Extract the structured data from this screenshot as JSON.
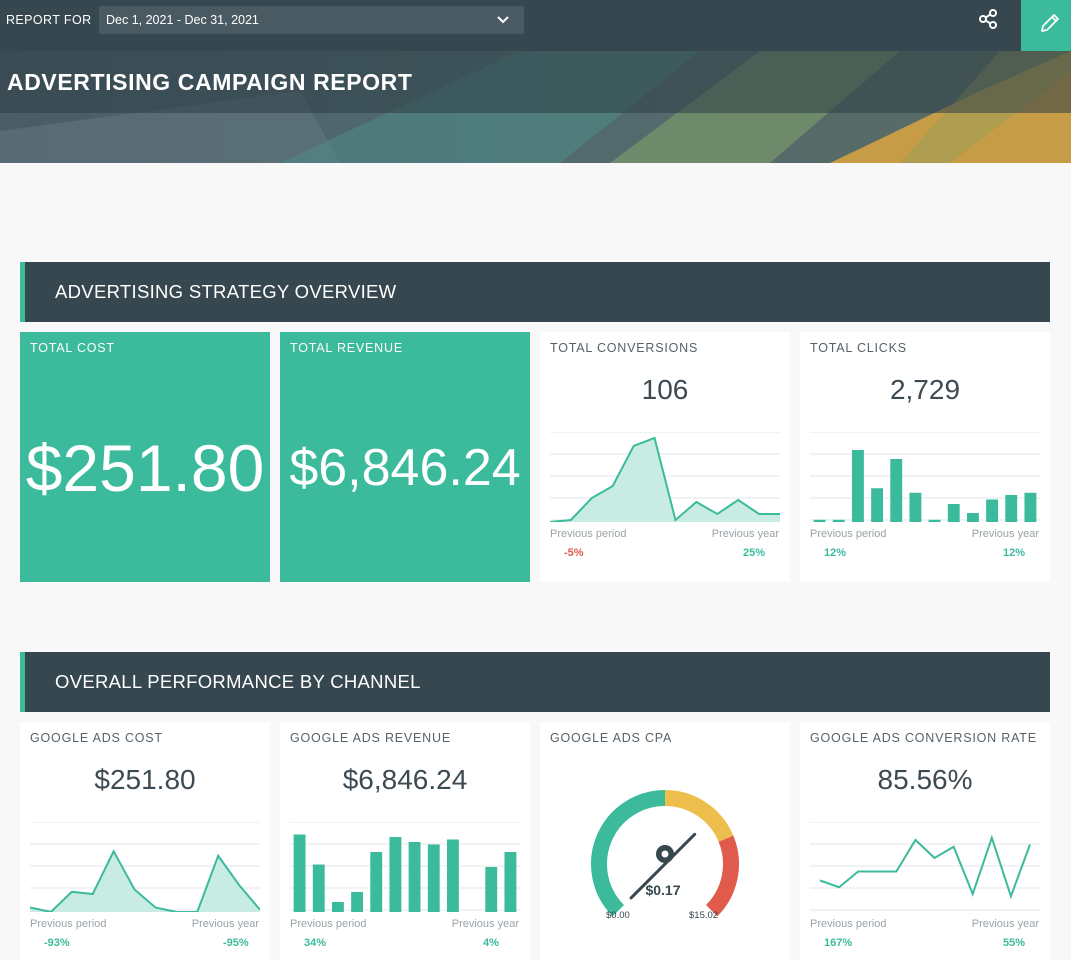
{
  "topbar": {
    "report_for_label": "REPORT FOR",
    "date_range": "Dec 1, 2021 - Dec 31, 2021"
  },
  "icons": [
    "chevron-down-icon",
    "share-icon",
    "pencil-icon"
  ],
  "report": {
    "title": "ADVERTISING CAMPAIGN REPORT"
  },
  "colors": {
    "teal": "#3bba9c",
    "dark": "#36474f",
    "red": "#e05b4b",
    "yellow": "#edbe4b"
  },
  "sections": [
    {
      "title": "ADVERTISING STRATEGY OVERVIEW",
      "widgets": [
        {
          "label": "TOTAL COST",
          "value": "$251.80"
        },
        {
          "label": "TOTAL REVENUE",
          "value": "$6,846.24"
        },
        {
          "label": "TOTAL CONVERSIONS",
          "value": "106",
          "prev_period_label": "Previous period",
          "prev_period_value": "-5%",
          "prev_year_label": "Previous year",
          "prev_year_value": "25%"
        },
        {
          "label": "TOTAL CLICKS",
          "value": "2,729",
          "prev_period_label": "Previous period",
          "prev_period_value": "12%",
          "prev_year_label": "Previous year",
          "prev_year_value": "12%"
        }
      ]
    },
    {
      "title": "OVERALL PERFORMANCE BY CHANNEL",
      "widgets": [
        {
          "label": "GOOGLE ADS COST",
          "value": "$251.80",
          "prev_period_label": "Previous period",
          "prev_period_value": "-93%",
          "prev_year_label": "Previous year",
          "prev_year_value": "-95%"
        },
        {
          "label": "GOOGLE ADS REVENUE",
          "value": "$6,846.24",
          "prev_period_label": "Previous period",
          "prev_period_value": "34%",
          "prev_year_label": "Previous year",
          "prev_year_value": "4%"
        },
        {
          "label": "GOOGLE ADS CPA",
          "value": "$0.17",
          "min": "$0.00",
          "max": "$15.02"
        },
        {
          "label": "GOOGLE ADS CONVERSION RATE",
          "value": "85.56%",
          "prev_period_label": "Previous period",
          "prev_period_value": "167%",
          "prev_year_label": "Previous year",
          "prev_year_value": "55%"
        }
      ]
    }
  ],
  "chart_data": [
    {
      "type": "area",
      "title": "TOTAL CONVERSIONS",
      "values": [
        0,
        1,
        12,
        18,
        38,
        42,
        1,
        10,
        4,
        11,
        4,
        4
      ],
      "ylim": [
        0,
        45
      ]
    },
    {
      "type": "bar",
      "title": "TOTAL CLICKS",
      "values": [
        1,
        1,
        32,
        15,
        28,
        13,
        1,
        8,
        4,
        10,
        12,
        13
      ],
      "ylim": [
        0,
        40
      ]
    },
    {
      "type": "area",
      "title": "GOOGLE ADS COST",
      "values": [
        2,
        0,
        9,
        8,
        27,
        10,
        2,
        0,
        0,
        25,
        12,
        1
      ],
      "ylim": [
        0,
        40
      ]
    },
    {
      "type": "bar",
      "title": "GOOGLE ADS REVENUE",
      "values": [
        31,
        19,
        4,
        8,
        24,
        30,
        28,
        27,
        29,
        0,
        18,
        24
      ],
      "ylim": [
        0,
        36
      ]
    },
    {
      "type": "gauge",
      "title": "GOOGLE ADS CPA",
      "value": 0.17,
      "min": 0,
      "max": 15.02
    },
    {
      "type": "line",
      "title": "GOOGLE ADS CONVERSION RATE",
      "values": [
        14,
        11,
        18,
        18,
        18,
        32,
        24,
        29,
        8,
        33,
        7,
        30
      ],
      "ylim": [
        0,
        40
      ]
    }
  ]
}
